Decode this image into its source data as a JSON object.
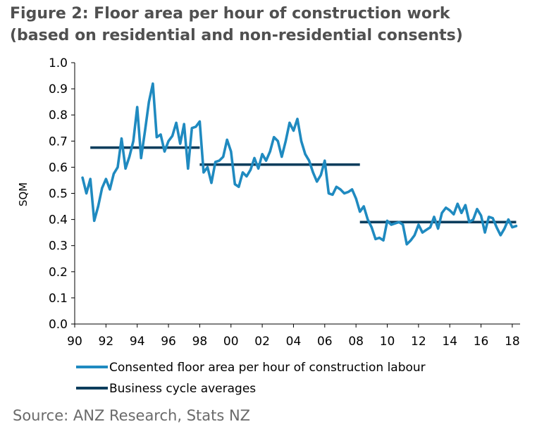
{
  "title_lines": [
    "Figure 2: Floor area per hour of construction work",
    "(based on residential and non-residential consents)"
  ],
  "source": "Source: ANZ Research, Stats NZ",
  "colors": {
    "series_line": "#1f8ac0",
    "averages": "#0c3d5c",
    "axis": "#000000"
  },
  "chart_data": {
    "type": "line",
    "ylabel": "SQM",
    "xlabel": "",
    "ylim": [
      0.0,
      1.0
    ],
    "y_ticks": [
      "0.0",
      "0.1",
      "0.2",
      "0.3",
      "0.4",
      "0.5",
      "0.6",
      "0.7",
      "0.8",
      "0.9",
      "1.0"
    ],
    "xlim": [
      1990,
      2018.5
    ],
    "x_ticks": [
      {
        "value": 1990,
        "label": "90"
      },
      {
        "value": 1992,
        "label": "92"
      },
      {
        "value": 1994,
        "label": "94"
      },
      {
        "value": 1996,
        "label": "96"
      },
      {
        "value": 1998,
        "label": "98"
      },
      {
        "value": 2000,
        "label": "00"
      },
      {
        "value": 2002,
        "label": "02"
      },
      {
        "value": 2004,
        "label": "04"
      },
      {
        "value": 2006,
        "label": "06"
      },
      {
        "value": 2008,
        "label": "08"
      },
      {
        "value": 2010,
        "label": "10"
      },
      {
        "value": 2012,
        "label": "12"
      },
      {
        "value": 2014,
        "label": "14"
      },
      {
        "value": 2016,
        "label": "16"
      },
      {
        "value": 2018,
        "label": "18"
      }
    ],
    "legend_position": "bottom",
    "series": [
      {
        "name": "Consented floor area per hour of construction labour",
        "style": "line",
        "x": [
          1990.5,
          1990.75,
          1991.0,
          1991.25,
          1991.5,
          1991.75,
          1992.0,
          1992.25,
          1992.5,
          1992.75,
          1993.0,
          1993.25,
          1993.5,
          1993.75,
          1994.0,
          1994.25,
          1994.5,
          1994.75,
          1995.0,
          1995.25,
          1995.5,
          1995.75,
          1996.0,
          1996.25,
          1996.5,
          1996.75,
          1997.0,
          1997.25,
          1997.5,
          1997.75,
          1998.0,
          1998.25,
          1998.5,
          1998.75,
          1999.0,
          1999.25,
          1999.5,
          1999.75,
          2000.0,
          2000.25,
          2000.5,
          2000.75,
          2001.0,
          2001.25,
          2001.5,
          2001.75,
          2002.0,
          2002.25,
          2002.5,
          2002.75,
          2003.0,
          2003.25,
          2003.5,
          2003.75,
          2004.0,
          2004.25,
          2004.5,
          2004.75,
          2005.0,
          2005.25,
          2005.5,
          2005.75,
          2006.0,
          2006.25,
          2006.5,
          2006.75,
          2007.0,
          2007.25,
          2007.5,
          2007.75,
          2008.0,
          2008.25,
          2008.5,
          2008.75,
          2009.0,
          2009.25,
          2009.5,
          2009.75,
          2010.0,
          2010.25,
          2010.5,
          2010.75,
          2011.0,
          2011.25,
          2011.5,
          2011.75,
          2012.0,
          2012.25,
          2012.5,
          2012.75,
          2013.0,
          2013.25,
          2013.5,
          2013.75,
          2014.0,
          2014.25,
          2014.5,
          2014.75,
          2015.0,
          2015.25,
          2015.5,
          2015.75,
          2016.0,
          2016.25,
          2016.5,
          2016.75,
          2017.0,
          2017.25,
          2017.5,
          2017.75,
          2018.0,
          2018.25
        ],
        "values": [
          0.56,
          0.5,
          0.555,
          0.395,
          0.45,
          0.52,
          0.555,
          0.515,
          0.575,
          0.6,
          0.71,
          0.595,
          0.64,
          0.7,
          0.83,
          0.635,
          0.74,
          0.85,
          0.92,
          0.715,
          0.725,
          0.66,
          0.7,
          0.72,
          0.77,
          0.69,
          0.765,
          0.595,
          0.75,
          0.755,
          0.775,
          0.58,
          0.6,
          0.54,
          0.62,
          0.625,
          0.64,
          0.705,
          0.66,
          0.535,
          0.525,
          0.58,
          0.565,
          0.59,
          0.635,
          0.595,
          0.65,
          0.625,
          0.66,
          0.715,
          0.7,
          0.64,
          0.7,
          0.77,
          0.74,
          0.785,
          0.7,
          0.65,
          0.625,
          0.58,
          0.545,
          0.57,
          0.625,
          0.5,
          0.495,
          0.525,
          0.515,
          0.5,
          0.505,
          0.515,
          0.48,
          0.43,
          0.45,
          0.4,
          0.37,
          0.325,
          0.33,
          0.32,
          0.395,
          0.38,
          0.385,
          0.39,
          0.38,
          0.305,
          0.32,
          0.34,
          0.38,
          0.35,
          0.36,
          0.37,
          0.41,
          0.365,
          0.425,
          0.445,
          0.435,
          0.42,
          0.46,
          0.425,
          0.455,
          0.39,
          0.4,
          0.44,
          0.415,
          0.35,
          0.41,
          0.405,
          0.37,
          0.34,
          0.365,
          0.4,
          0.37,
          0.375
        ]
      },
      {
        "name": "Business cycle averages",
        "style": "segments",
        "segments": [
          {
            "x_start": 1991.0,
            "x_end": 1998.0,
            "value": 0.675
          },
          {
            "x_start": 1998.0,
            "x_end": 2008.25,
            "value": 0.61
          },
          {
            "x_start": 2008.25,
            "x_end": 2018.25,
            "value": 0.39
          }
        ]
      }
    ]
  }
}
